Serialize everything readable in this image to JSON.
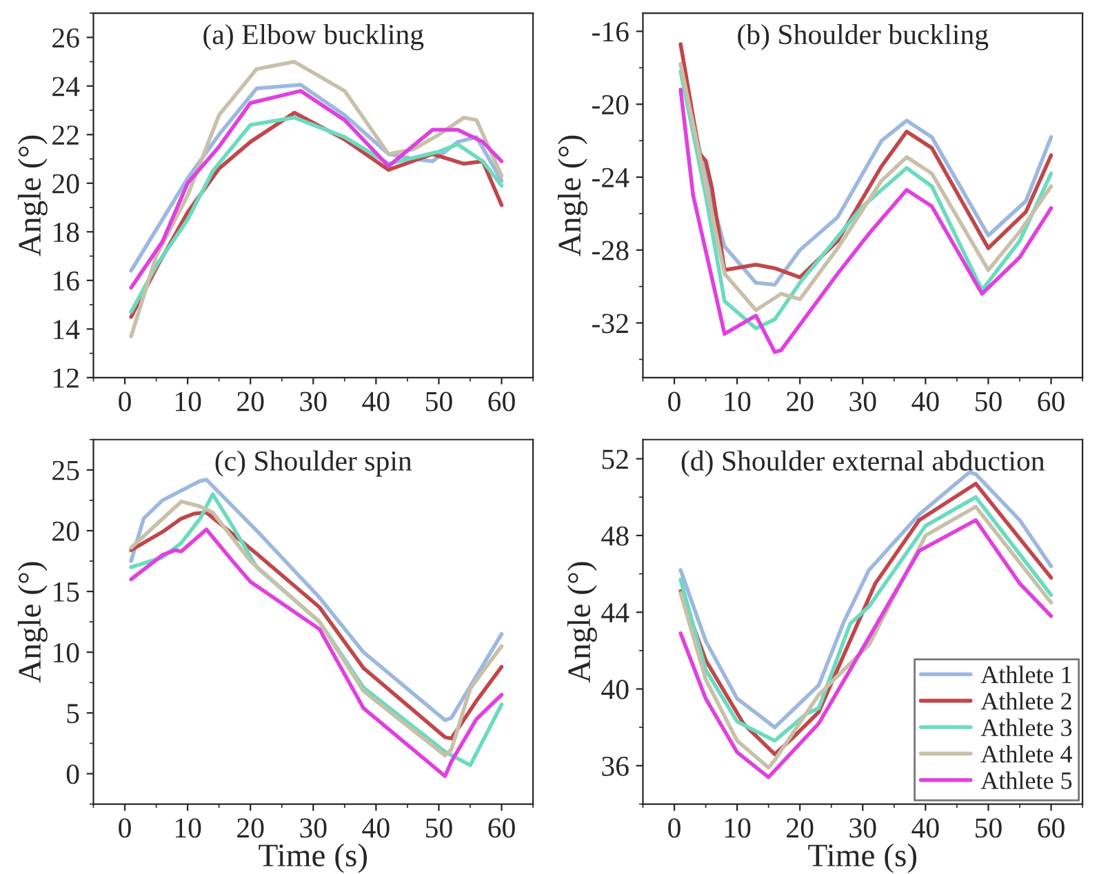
{
  "chart_data": [
    {
      "type": "line",
      "title": "(a) Elbow buckling",
      "ylabel": "Angle (°)",
      "xlim": [
        -5,
        65
      ],
      "xticks": [
        0,
        10,
        20,
        30,
        40,
        50,
        60
      ],
      "ylim": [
        12,
        27
      ],
      "yticks": [
        12,
        14,
        16,
        18,
        20,
        22,
        24,
        26
      ],
      "grid": false,
      "legend": false,
      "series": [
        {
          "color": "#9db8e0",
          "x": [
            1,
            10,
            15,
            21,
            28,
            35,
            42,
            46,
            49,
            53,
            56,
            60
          ],
          "values": [
            16.4,
            20.2,
            22,
            23.9,
            24.05,
            22.8,
            21.2,
            21.0,
            20.9,
            21.7,
            21.9,
            20.1
          ]
        },
        {
          "color": "#c0474a",
          "x": [
            1,
            5,
            10,
            15,
            20,
            27,
            35,
            42,
            49,
            54,
            57,
            60
          ],
          "values": [
            14.5,
            16.5,
            18.8,
            20.6,
            21.7,
            22.9,
            21.8,
            20.55,
            21.2,
            20.8,
            20.9,
            19.1
          ]
        },
        {
          "color": "#6bdbbf",
          "x": [
            1,
            5,
            10,
            14,
            20,
            27,
            35,
            42,
            50,
            53,
            57,
            60
          ],
          "values": [
            14.7,
            16.6,
            18.5,
            20.5,
            22.4,
            22.7,
            21.9,
            20.8,
            21.3,
            21.6,
            20.9,
            19.9
          ]
        },
        {
          "color": "#c8c0a8",
          "x": [
            1,
            5,
            10,
            15,
            21,
            27,
            35,
            42,
            46,
            50,
            54,
            56,
            60
          ],
          "values": [
            13.7,
            17,
            19.5,
            22.8,
            24.7,
            25,
            23.8,
            21.2,
            21.4,
            22,
            22.7,
            22.6,
            20.3
          ]
        },
        {
          "color": "#e040e0",
          "x": [
            1,
            6,
            10,
            15,
            20,
            28,
            35,
            42,
            49,
            53,
            57,
            60
          ],
          "values": [
            15.7,
            17.6,
            20,
            21.5,
            23.3,
            23.8,
            22.6,
            20.7,
            22.2,
            22.2,
            21.7,
            20.9
          ]
        }
      ]
    },
    {
      "type": "line",
      "title": "(b) Shoulder buckling",
      "ylabel": "Angle (°)",
      "xlim": [
        -5,
        65
      ],
      "xticks": [
        0,
        10,
        20,
        30,
        40,
        50,
        60
      ],
      "ylim": [
        -35,
        -15
      ],
      "yticks": [
        -32,
        -28,
        -24,
        -20,
        -16
      ],
      "grid": false,
      "legend": false,
      "series": [
        {
          "color": "#9db8e0",
          "x": [
            1,
            5,
            8,
            13,
            16,
            20,
            26,
            33,
            37,
            41,
            50,
            56,
            60
          ],
          "values": [
            -17.8,
            -24,
            -27.8,
            -29.8,
            -29.9,
            -28,
            -26.2,
            -22,
            -20.9,
            -21.8,
            -27.2,
            -25.3,
            -21.8
          ]
        },
        {
          "color": "#c0474a",
          "x": [
            1,
            4,
            5,
            6,
            8,
            13,
            16,
            20,
            26,
            33,
            37,
            41,
            50,
            56,
            60
          ],
          "values": [
            -16.7,
            -22.7,
            -23.1,
            -24.6,
            -29.1,
            -28.8,
            -29.0,
            -29.5,
            -27.5,
            -23.4,
            -21.5,
            -22.4,
            -27.9,
            -25.9,
            -22.8
          ]
        },
        {
          "color": "#6bdbbf",
          "x": [
            1,
            5,
            8,
            13,
            16,
            20,
            30,
            37,
            41,
            49,
            55,
            60
          ],
          "values": [
            -18.2,
            -25,
            -30.8,
            -32.3,
            -31.8,
            -29.8,
            -25.6,
            -23.5,
            -24.5,
            -30.2,
            -27.5,
            -23.8
          ]
        },
        {
          "color": "#c8c0a8",
          "x": [
            1,
            8,
            13,
            17,
            20,
            26,
            33,
            37,
            41,
            50,
            55,
            60
          ],
          "values": [
            -17.8,
            -29.3,
            -31.3,
            -30.4,
            -30.7,
            -27.9,
            -24.2,
            -22.9,
            -23.8,
            -29.1,
            -27,
            -24.5
          ]
        },
        {
          "color": "#e040e0",
          "x": [
            1,
            3,
            8,
            13,
            16,
            17,
            26,
            31,
            37,
            41,
            49,
            55,
            60
          ],
          "values": [
            -19.2,
            -25,
            -32.6,
            -31.6,
            -33.6,
            -33.5,
            -29.3,
            -27.1,
            -24.7,
            -25.6,
            -30.4,
            -28.4,
            -25.7
          ]
        }
      ]
    },
    {
      "type": "line",
      "title": "(c) Shoulder spin",
      "xlabel": "Time (s)",
      "ylabel": "Angle (°)",
      "xlim": [
        -5,
        65
      ],
      "xticks": [
        0,
        10,
        20,
        30,
        40,
        50,
        60
      ],
      "ylim": [
        -2.5,
        27.5
      ],
      "yticks": [
        0,
        5,
        10,
        15,
        20,
        25
      ],
      "grid": false,
      "legend": false,
      "series": [
        {
          "color": "#9db8e0",
          "x": [
            1,
            3,
            6,
            9,
            12,
            13,
            21,
            31,
            38,
            51,
            52,
            60
          ],
          "values": [
            17.5,
            21,
            22.5,
            23.3,
            24.1,
            24.2,
            20,
            14.5,
            10,
            4.4,
            4.6,
            11.5
          ]
        },
        {
          "color": "#c0474a",
          "x": [
            1,
            6,
            9,
            11,
            13,
            21,
            31,
            38,
            51,
            52,
            56,
            60
          ],
          "values": [
            18.4,
            19.9,
            21,
            21.4,
            21.5,
            18.1,
            13.7,
            8.7,
            3.0,
            2.9,
            6,
            8.8
          ]
        },
        {
          "color": "#6bdbbf",
          "x": [
            1,
            6,
            9,
            12,
            14,
            17,
            21,
            31,
            38,
            51,
            55,
            60
          ],
          "values": [
            17,
            17.8,
            19,
            21,
            23,
            20.5,
            17,
            12.5,
            7.1,
            1.8,
            0.7,
            5.7
          ]
        },
        {
          "color": "#c8c0a8",
          "x": [
            1,
            5,
            9,
            12,
            14,
            20,
            31,
            38,
            51,
            52,
            55,
            60
          ],
          "values": [
            18.6,
            20.5,
            22.4,
            22,
            21.5,
            17.5,
            12.5,
            6.8,
            1.5,
            2,
            7,
            10.5
          ]
        },
        {
          "color": "#e040e0",
          "x": [
            1,
            6,
            8,
            9,
            13,
            17,
            20,
            31,
            38,
            51,
            52,
            56,
            60
          ],
          "values": [
            16,
            18,
            18.4,
            18.3,
            20.1,
            17.6,
            15.8,
            11.9,
            5.4,
            -0.2,
            1,
            4.5,
            6.5
          ]
        }
      ]
    },
    {
      "type": "line",
      "title": "(d) Shoulder external abduction",
      "xlabel": "Time (s)",
      "ylabel": "Angle (°)",
      "xlim": [
        -5,
        65
      ],
      "xticks": [
        0,
        10,
        20,
        30,
        40,
        50,
        60
      ],
      "ylim": [
        34,
        53
      ],
      "yticks": [
        36,
        40,
        44,
        48,
        52
      ],
      "grid": false,
      "legend": "bottom right",
      "series": [
        {
          "name": "Athlete 1",
          "color": "#9db8e0",
          "x": [
            1,
            5,
            10,
            16,
            23,
            27,
            31,
            39,
            47,
            48,
            55,
            60
          ],
          "values": [
            46.2,
            42.5,
            39.5,
            38,
            40.2,
            43.5,
            46.2,
            49.1,
            51.3,
            51.2,
            48.8,
            46.4
          ]
        },
        {
          "name": "Athlete 2",
          "color": "#c0474a",
          "x": [
            1,
            5,
            11,
            16,
            19,
            23,
            32,
            39,
            48,
            60
          ],
          "values": [
            45.1,
            41.5,
            38.2,
            36.6,
            37.5,
            38.8,
            45.5,
            48.8,
            50.7,
            45.8
          ]
        },
        {
          "name": "Athlete 3",
          "color": "#6bdbbf",
          "x": [
            1,
            5,
            10,
            16,
            21,
            23,
            28,
            31,
            40,
            48,
            60
          ],
          "values": [
            45.7,
            41,
            38.3,
            37.3,
            38.7,
            39,
            43.4,
            44.3,
            48.5,
            50,
            44.9
          ]
        },
        {
          "name": "Athlete 4",
          "color": "#c8c0a8",
          "x": [
            1,
            5,
            10,
            15,
            16,
            23,
            31,
            40,
            48,
            60
          ],
          "values": [
            45,
            40.5,
            37.3,
            35.9,
            36.3,
            39.7,
            42.3,
            48,
            49.5,
            44.5
          ]
        },
        {
          "name": "Athlete 5",
          "color": "#e040e0",
          "x": [
            1,
            5,
            10,
            15,
            23,
            28,
            39,
            48,
            55,
            60
          ],
          "values": [
            42.9,
            39.5,
            36.7,
            35.4,
            38.2,
            41,
            47.2,
            48.8,
            45.5,
            43.8
          ]
        }
      ]
    }
  ]
}
